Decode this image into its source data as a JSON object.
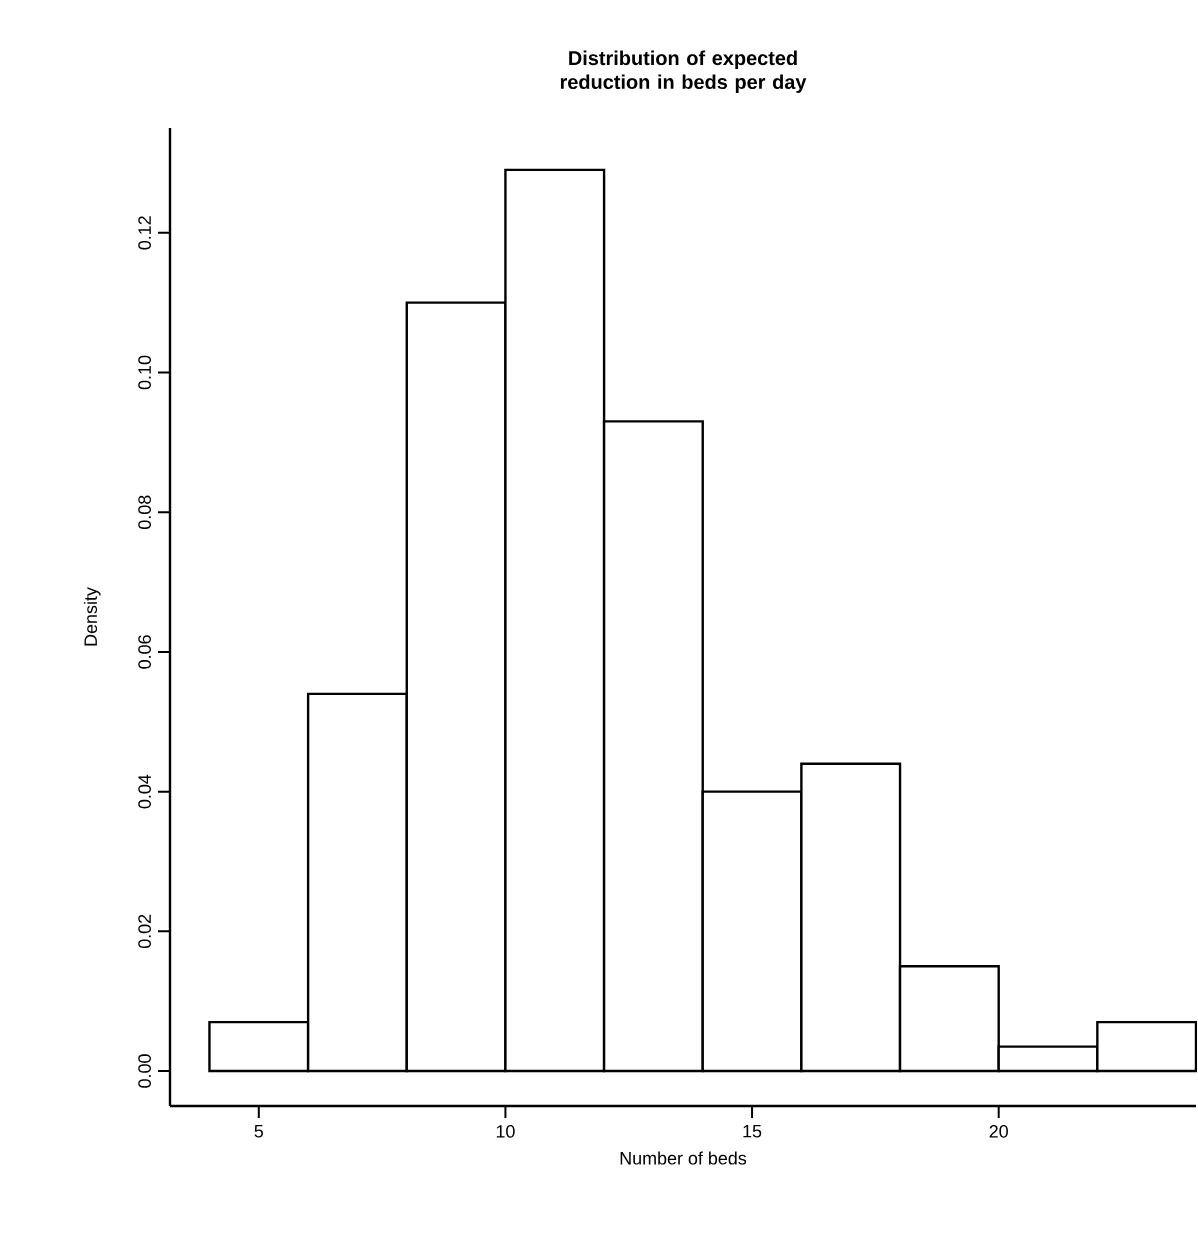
{
  "chart_data": {
    "type": "histogram",
    "title": "Distribution of expected reduction in beds per day",
    "xlabel": "Number of beds",
    "ylabel": "Density",
    "bins": [
      4,
      6,
      8,
      10,
      12,
      14,
      16,
      18,
      20,
      22,
      24
    ],
    "values": [
      0.007,
      0.054,
      0.11,
      0.129,
      0.093,
      0.04,
      0.044,
      0.015,
      0.0035,
      0.007
    ],
    "color": "#ffffff",
    "xlim": [
      3.2,
      24
    ],
    "ylim": [
      -0.005,
      0.135
    ],
    "xticks": [
      5,
      10,
      15,
      20
    ],
    "yticks": [
      {
        "value": 0,
        "label": "0.00"
      },
      {
        "value": 0.02,
        "label": "0.02"
      },
      {
        "value": 0.04,
        "label": "0.04"
      },
      {
        "value": 0.06,
        "label": "0.06"
      },
      {
        "value": 0.08,
        "label": "0.08"
      },
      {
        "value": 0.1,
        "label": "0.10"
      },
      {
        "value": 0.12,
        "label": "0.12"
      }
    ],
    "grid": false
  }
}
